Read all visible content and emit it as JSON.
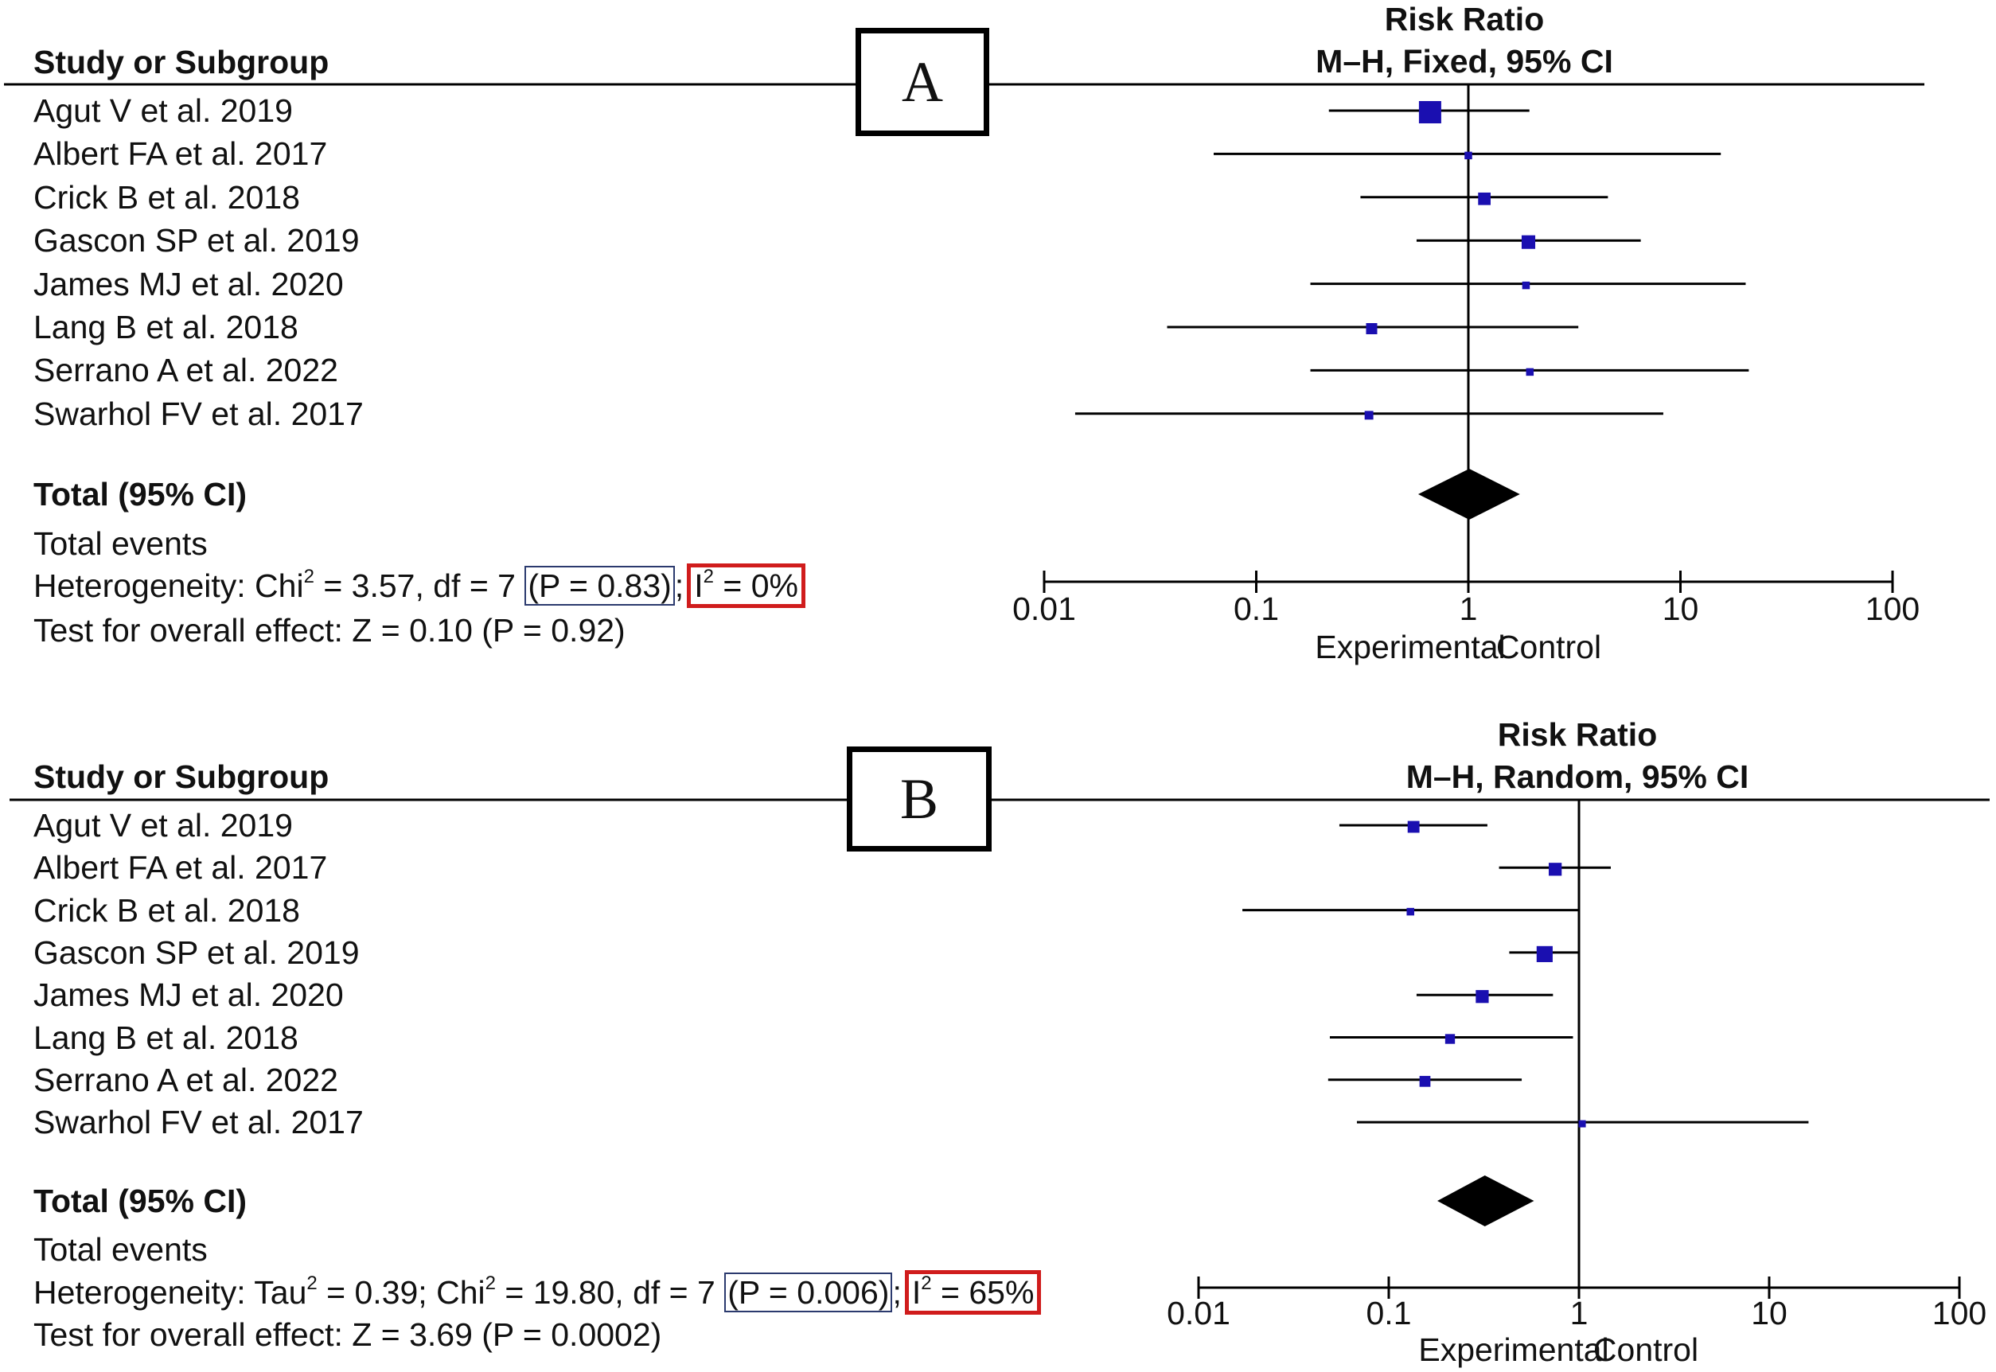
{
  "colors": {
    "marker": "#1a0fb0",
    "line": "#000000",
    "p_box": "#2b3a6e",
    "i2_box": "#d01c1c"
  },
  "studies": [
    "Agut V et al. 2019",
    "Albert FA et al. 2017",
    "Crick B et al. 2018",
    "Gascon SP et al. 2019",
    "James MJ et al. 2020",
    "Lang B et al. 2018",
    "Serrano A et al. 2022",
    "Swarhol FV et al. 2017"
  ],
  "panelA": {
    "label": "A",
    "col_header": "Study or Subgroup",
    "rr_title": "Risk Ratio",
    "rr_method": "M–H, Fixed, 95% CI",
    "total_label": "Total (95% CI)",
    "total_events": "Total events",
    "het_prefix": "Heterogeneity: Chi",
    "het_mid": " = 3.57, df = 7 ",
    "het_p": "(P = 0.83)",
    "het_sep": ";",
    "het_i2_pre": "I",
    "het_i2_post": " = 0%",
    "sup2": "2",
    "overall": "Test for overall effect: Z = 0.10 (P = 0.92)",
    "ticks": [
      "0.01",
      "0.1",
      "1",
      "10",
      "100"
    ],
    "favours_left": "Experimental",
    "favours_right": "Control"
  },
  "panelB": {
    "label": "B",
    "col_header": "Study or Subgroup",
    "rr_title": "Risk Ratio",
    "rr_method": "M–H, Random, 95% CI",
    "total_label": "Total (95% CI)",
    "total_events": "Total events",
    "het_prefix": "Heterogeneity: Tau",
    "het_mid1": " = 0.39; Chi",
    "het_mid": " = 19.80, df = 7 ",
    "het_p": "(P = 0.006)",
    "het_sep": ";",
    "het_i2_pre": "I",
    "het_i2_post": " = 65%",
    "sup2": "2",
    "overall": "Test for overall effect: Z = 3.69 (P = 0.0002)",
    "ticks": [
      "0.01",
      "0.1",
      "1",
      "10",
      "100"
    ],
    "favours_left": "Experimental",
    "favours_right": "Control"
  },
  "chart_data": [
    {
      "type": "forest",
      "title": "Risk Ratio M–H, Fixed, 95% CI",
      "x_scale": "log",
      "xlim": [
        0.01,
        100
      ],
      "categories": [
        "Agut V et al. 2019",
        "Albert FA et al. 2017",
        "Crick B et al. 2018",
        "Gascon SP et al. 2019",
        "James MJ et al. 2020",
        "Lang B et al. 2018",
        "Serrano A et al. 2022",
        "Swarhol FV et al. 2017"
      ],
      "rr": [
        0.66,
        1.0,
        1.19,
        1.92,
        1.87,
        0.35,
        1.95,
        0.34
      ],
      "lower": [
        0.22,
        0.063,
        0.31,
        0.57,
        0.18,
        0.038,
        0.18,
        0.014
      ],
      "upper": [
        1.94,
        15.5,
        4.55,
        6.5,
        20.3,
        3.3,
        21,
        8.3
      ],
      "weight_rel": [
        1.0,
        0.34,
        0.56,
        0.61,
        0.34,
        0.5,
        0.34,
        0.39
      ],
      "total": {
        "rr": 1.01,
        "lower": 0.58,
        "upper": 1.75
      }
    },
    {
      "type": "forest",
      "title": "Risk Ratio M–H, Random, 95% CI",
      "x_scale": "log",
      "xlim": [
        0.01,
        100
      ],
      "categories": [
        "Agut V et al. 2019",
        "Albert FA et al. 2017",
        "Crick B et al. 2018",
        "Gascon SP et al. 2019",
        "James MJ et al. 2020",
        "Lang B et al. 2018",
        "Serrano A et al. 2022",
        "Swarhol FV et al. 2017"
      ],
      "rr": [
        0.135,
        0.75,
        0.13,
        0.66,
        0.31,
        0.21,
        0.155,
        1.04
      ],
      "lower": [
        0.055,
        0.38,
        0.017,
        0.43,
        0.14,
        0.049,
        0.048,
        0.068
      ],
      "upper": [
        0.33,
        1.47,
        1.0,
        1.0,
        0.73,
        0.93,
        0.5,
        16.1
      ],
      "weight_rel": [
        0.53,
        0.58,
        0.34,
        0.72,
        0.58,
        0.44,
        0.49,
        0.29
      ],
      "total": {
        "rr": 0.32,
        "lower": 0.18,
        "upper": 0.58
      }
    }
  ]
}
